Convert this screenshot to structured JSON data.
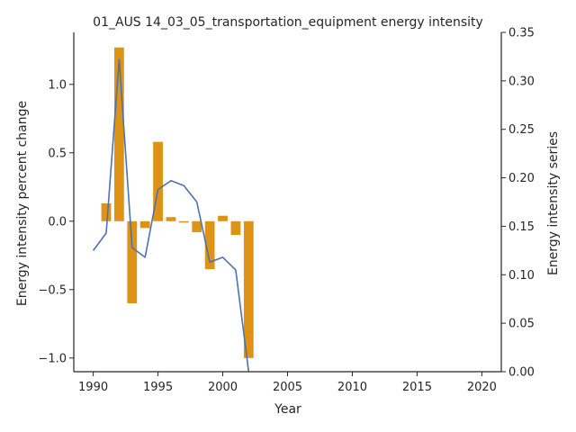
{
  "chart_data": {
    "type": "bar",
    "title": "01_AUS 14_03_05_transportation_equipment energy intensity",
    "xlabel": "Year",
    "ylabel_left": "Energy intensity percent change",
    "ylabel_right": "Energy intensity series",
    "xlim": [
      1988.5,
      2021.5
    ],
    "ylim_left": [
      -1.1,
      1.38
    ],
    "ylim_right": [
      0.0,
      0.35
    ],
    "x_ticks": [
      1990,
      1995,
      2000,
      2005,
      2010,
      2015,
      2020
    ],
    "y_ticks_left": [
      -1.0,
      -0.5,
      0.0,
      0.5,
      1.0
    ],
    "y_ticks_right": [
      0.0,
      0.05,
      0.1,
      0.15,
      0.2,
      0.25,
      0.3,
      0.35
    ],
    "grid": false,
    "legend": "none",
    "bar_color": "#dd9416",
    "line_color": "#4c72b0",
    "series": [
      {
        "kind": "bar",
        "axis": "left",
        "x": [
          1991,
          1992,
          1993,
          1994,
          1995,
          1996,
          1997,
          1998,
          1999,
          2000,
          2001,
          2002
        ],
        "values": [
          0.13,
          1.27,
          -0.6,
          -0.05,
          0.58,
          0.03,
          -0.01,
          -0.08,
          -0.35,
          0.04,
          -0.1,
          -1.0
        ]
      },
      {
        "kind": "line",
        "axis": "right",
        "x": [
          1990,
          1991,
          1992,
          1993,
          1994,
          1995,
          1996,
          1997,
          1998,
          1999,
          2000,
          2001,
          2002
        ],
        "values": [
          0.125,
          0.143,
          0.322,
          0.128,
          0.118,
          0.188,
          0.197,
          0.192,
          0.175,
          0.113,
          0.118,
          0.105,
          0.0
        ]
      }
    ]
  }
}
